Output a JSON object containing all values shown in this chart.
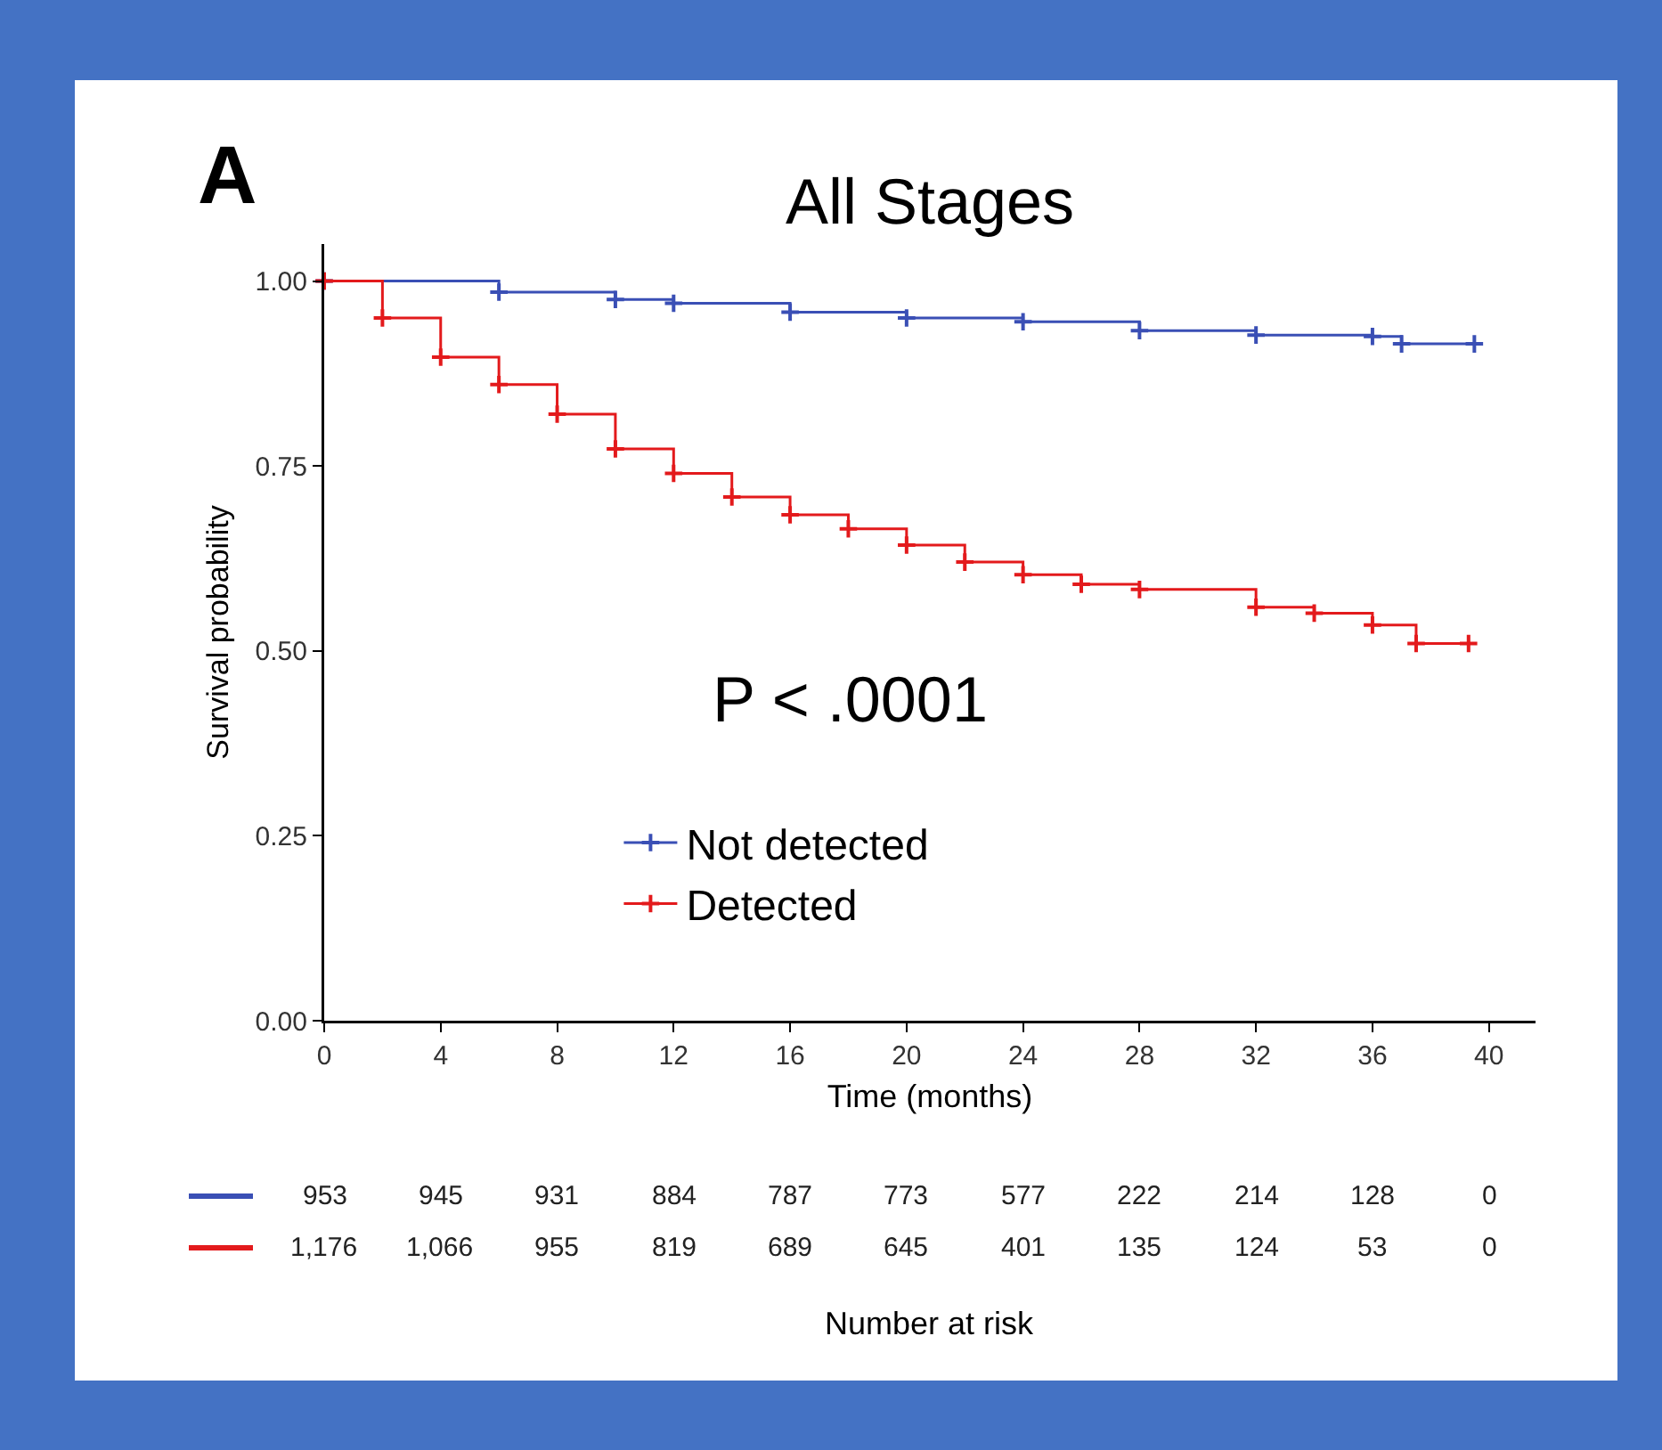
{
  "chart_data": {
    "type": "step",
    "title": "All Stages",
    "xlabel": "Time (months)",
    "ylabel": "Survival probability",
    "marker": "cross",
    "legend": "bottom",
    "annotations": [
      "A",
      "P < .0001",
      "953",
      "945",
      "931",
      "884",
      "787",
      "773",
      "577",
      "222",
      "214",
      "128",
      "0",
      "1,176",
      "1,066",
      "955",
      "819",
      "689",
      "645",
      "401",
      "135",
      "124",
      "53",
      "0",
      "Number at risk"
    ],
    "xlim": [
      0,
      41.6
    ],
    "xticks": [
      0,
      4,
      8,
      12,
      16,
      20,
      24,
      28,
      32,
      36,
      40
    ],
    "ylim": [
      0,
      1.05
    ],
    "yticks": [
      {
        "value": 0,
        "label": "0.00"
      },
      {
        "value": 0.25,
        "label": "0.25"
      },
      {
        "value": 0.5,
        "label": "0.50"
      },
      {
        "value": 0.75,
        "label": "0.75"
      },
      {
        "value": 1,
        "label": "1.00"
      }
    ],
    "series": [
      {
        "name": "Not detected",
        "color": "#3a4fb5",
        "x": [
          0,
          6,
          10,
          12,
          16,
          20,
          24,
          28,
          32,
          36,
          37,
          39.5
        ],
        "values": [
          1.0,
          0.985,
          0.975,
          0.97,
          0.958,
          0.95,
          0.945,
          0.933,
          0.927,
          0.925,
          0.915,
          0.915
        ]
      },
      {
        "name": "Detected",
        "color": "#e31a1c",
        "x": [
          0,
          2,
          4,
          6,
          8,
          10,
          12,
          14,
          16,
          18,
          20,
          22,
          24,
          26,
          28,
          32,
          34,
          36,
          37.5,
          39.3
        ],
        "values": [
          1.0,
          0.95,
          0.897,
          0.86,
          0.82,
          0.773,
          0.74,
          0.708,
          0.684,
          0.665,
          0.643,
          0.62,
          0.603,
          0.59,
          0.583,
          0.559,
          0.551,
          0.535,
          0.51,
          0.51
        ]
      }
    ]
  }
}
